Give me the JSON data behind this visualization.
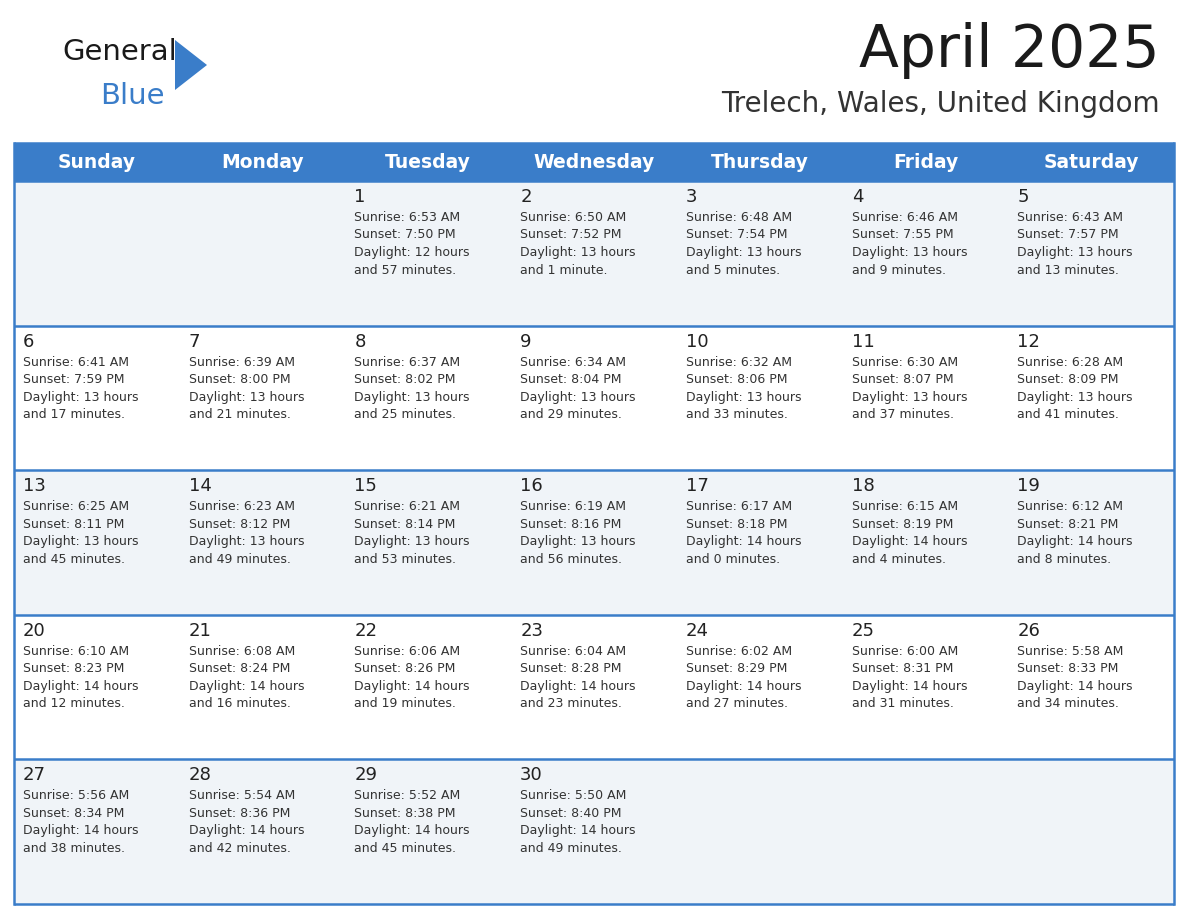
{
  "title": "April 2025",
  "subtitle": "Trelech, Wales, United Kingdom",
  "days_of_week": [
    "Sunday",
    "Monday",
    "Tuesday",
    "Wednesday",
    "Thursday",
    "Friday",
    "Saturday"
  ],
  "header_bg": "#3a7dc9",
  "header_text": "#ffffff",
  "row_bg_odd": "#f0f4f8",
  "row_bg_even": "#ffffff",
  "border_color": "#3a7dc9",
  "day_num_color": "#222222",
  "text_color": "#333333",
  "title_color": "#1a1a1a",
  "subtitle_color": "#333333",
  "logo_general_color": "#1a1a1a",
  "logo_blue_color": "#3a7dc9",
  "logo_triangle_color": "#3a7dc9",
  "weeks": [
    [
      {
        "day": null,
        "info": null
      },
      {
        "day": null,
        "info": null
      },
      {
        "day": "1",
        "info": "Sunrise: 6:53 AM\nSunset: 7:50 PM\nDaylight: 12 hours\nand 57 minutes."
      },
      {
        "day": "2",
        "info": "Sunrise: 6:50 AM\nSunset: 7:52 PM\nDaylight: 13 hours\nand 1 minute."
      },
      {
        "day": "3",
        "info": "Sunrise: 6:48 AM\nSunset: 7:54 PM\nDaylight: 13 hours\nand 5 minutes."
      },
      {
        "day": "4",
        "info": "Sunrise: 6:46 AM\nSunset: 7:55 PM\nDaylight: 13 hours\nand 9 minutes."
      },
      {
        "day": "5",
        "info": "Sunrise: 6:43 AM\nSunset: 7:57 PM\nDaylight: 13 hours\nand 13 minutes."
      }
    ],
    [
      {
        "day": "6",
        "info": "Sunrise: 6:41 AM\nSunset: 7:59 PM\nDaylight: 13 hours\nand 17 minutes."
      },
      {
        "day": "7",
        "info": "Sunrise: 6:39 AM\nSunset: 8:00 PM\nDaylight: 13 hours\nand 21 minutes."
      },
      {
        "day": "8",
        "info": "Sunrise: 6:37 AM\nSunset: 8:02 PM\nDaylight: 13 hours\nand 25 minutes."
      },
      {
        "day": "9",
        "info": "Sunrise: 6:34 AM\nSunset: 8:04 PM\nDaylight: 13 hours\nand 29 minutes."
      },
      {
        "day": "10",
        "info": "Sunrise: 6:32 AM\nSunset: 8:06 PM\nDaylight: 13 hours\nand 33 minutes."
      },
      {
        "day": "11",
        "info": "Sunrise: 6:30 AM\nSunset: 8:07 PM\nDaylight: 13 hours\nand 37 minutes."
      },
      {
        "day": "12",
        "info": "Sunrise: 6:28 AM\nSunset: 8:09 PM\nDaylight: 13 hours\nand 41 minutes."
      }
    ],
    [
      {
        "day": "13",
        "info": "Sunrise: 6:25 AM\nSunset: 8:11 PM\nDaylight: 13 hours\nand 45 minutes."
      },
      {
        "day": "14",
        "info": "Sunrise: 6:23 AM\nSunset: 8:12 PM\nDaylight: 13 hours\nand 49 minutes."
      },
      {
        "day": "15",
        "info": "Sunrise: 6:21 AM\nSunset: 8:14 PM\nDaylight: 13 hours\nand 53 minutes."
      },
      {
        "day": "16",
        "info": "Sunrise: 6:19 AM\nSunset: 8:16 PM\nDaylight: 13 hours\nand 56 minutes."
      },
      {
        "day": "17",
        "info": "Sunrise: 6:17 AM\nSunset: 8:18 PM\nDaylight: 14 hours\nand 0 minutes."
      },
      {
        "day": "18",
        "info": "Sunrise: 6:15 AM\nSunset: 8:19 PM\nDaylight: 14 hours\nand 4 minutes."
      },
      {
        "day": "19",
        "info": "Sunrise: 6:12 AM\nSunset: 8:21 PM\nDaylight: 14 hours\nand 8 minutes."
      }
    ],
    [
      {
        "day": "20",
        "info": "Sunrise: 6:10 AM\nSunset: 8:23 PM\nDaylight: 14 hours\nand 12 minutes."
      },
      {
        "day": "21",
        "info": "Sunrise: 6:08 AM\nSunset: 8:24 PM\nDaylight: 14 hours\nand 16 minutes."
      },
      {
        "day": "22",
        "info": "Sunrise: 6:06 AM\nSunset: 8:26 PM\nDaylight: 14 hours\nand 19 minutes."
      },
      {
        "day": "23",
        "info": "Sunrise: 6:04 AM\nSunset: 8:28 PM\nDaylight: 14 hours\nand 23 minutes."
      },
      {
        "day": "24",
        "info": "Sunrise: 6:02 AM\nSunset: 8:29 PM\nDaylight: 14 hours\nand 27 minutes."
      },
      {
        "day": "25",
        "info": "Sunrise: 6:00 AM\nSunset: 8:31 PM\nDaylight: 14 hours\nand 31 minutes."
      },
      {
        "day": "26",
        "info": "Sunrise: 5:58 AM\nSunset: 8:33 PM\nDaylight: 14 hours\nand 34 minutes."
      }
    ],
    [
      {
        "day": "27",
        "info": "Sunrise: 5:56 AM\nSunset: 8:34 PM\nDaylight: 14 hours\nand 38 minutes."
      },
      {
        "day": "28",
        "info": "Sunrise: 5:54 AM\nSunset: 8:36 PM\nDaylight: 14 hours\nand 42 minutes."
      },
      {
        "day": "29",
        "info": "Sunrise: 5:52 AM\nSunset: 8:38 PM\nDaylight: 14 hours\nand 45 minutes."
      },
      {
        "day": "30",
        "info": "Sunrise: 5:50 AM\nSunset: 8:40 PM\nDaylight: 14 hours\nand 49 minutes."
      },
      {
        "day": null,
        "info": null
      },
      {
        "day": null,
        "info": null
      },
      {
        "day": null,
        "info": null
      }
    ]
  ]
}
